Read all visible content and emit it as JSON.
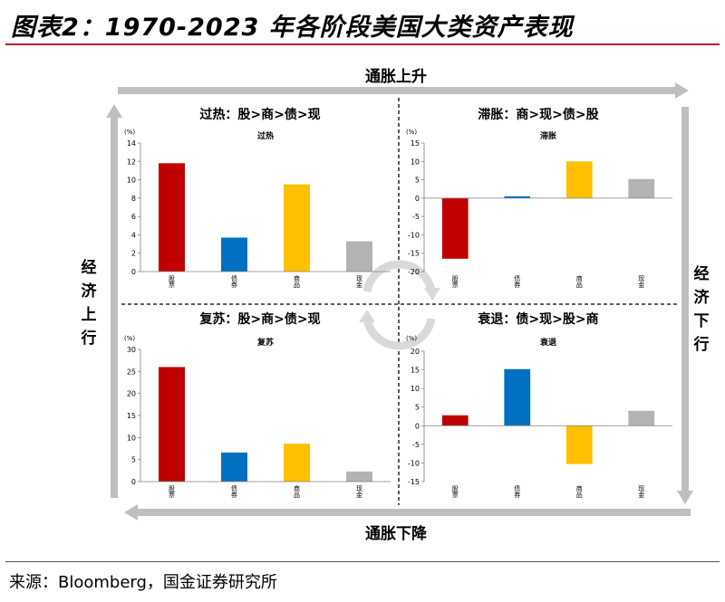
{
  "title": "图表2：1970-2023 年各阶段美国大类资产表现",
  "source": "来源：Bloomberg，国金证券研究所",
  "axes": {
    "top": "通胀上升",
    "bottom": "通胀下降",
    "left": "经济上行",
    "right": "经济下行"
  },
  "colors": {
    "stock": "#c00000",
    "bond": "#0070c0",
    "commodity": "#ffc000",
    "cash": "#b3b3b3",
    "arrow": "#bfbfbf"
  },
  "chart_data": [
    {
      "type": "bar",
      "quadrant": "top-left",
      "heading": "过热：股>商>债>现",
      "title": "过热",
      "unit": "(%)",
      "categories": [
        "股票",
        "债券",
        "商品",
        "现金"
      ],
      "values": [
        11.8,
        3.7,
        9.5,
        3.3
      ],
      "ylim": [
        0,
        14
      ],
      "yticks": [
        0,
        2,
        4,
        6,
        8,
        10,
        12,
        14
      ]
    },
    {
      "type": "bar",
      "quadrant": "top-right",
      "heading": "滞胀：商>现>债>股",
      "title": "滞胀",
      "unit": "(%)",
      "categories": [
        "股票",
        "债券",
        "商品",
        "现金"
      ],
      "values": [
        -16.5,
        0.5,
        10.0,
        5.2
      ],
      "ylim": [
        -20,
        15
      ],
      "yticks": [
        -20,
        -15,
        -10,
        -5,
        0,
        5,
        10,
        15
      ]
    },
    {
      "type": "bar",
      "quadrant": "bottom-left",
      "heading": "复苏：股>商>债>现",
      "title": "复苏",
      "unit": "(%)",
      "categories": [
        "股票",
        "债券",
        "商品",
        "现金"
      ],
      "values": [
        26.0,
        6.6,
        8.6,
        2.3
      ],
      "ylim": [
        0,
        30
      ],
      "yticks": [
        0,
        5,
        10,
        15,
        20,
        25,
        30
      ]
    },
    {
      "type": "bar",
      "quadrant": "bottom-right",
      "heading": "衰退：债>现>股>商",
      "title": "衰退",
      "unit": "(%)",
      "categories": [
        "股票",
        "债券",
        "商品",
        "现金"
      ],
      "values": [
        2.8,
        15.2,
        -10.3,
        4.0
      ],
      "ylim": [
        -15,
        20
      ],
      "yticks": [
        -15,
        -10,
        -5,
        0,
        5,
        10,
        15,
        20
      ]
    }
  ]
}
